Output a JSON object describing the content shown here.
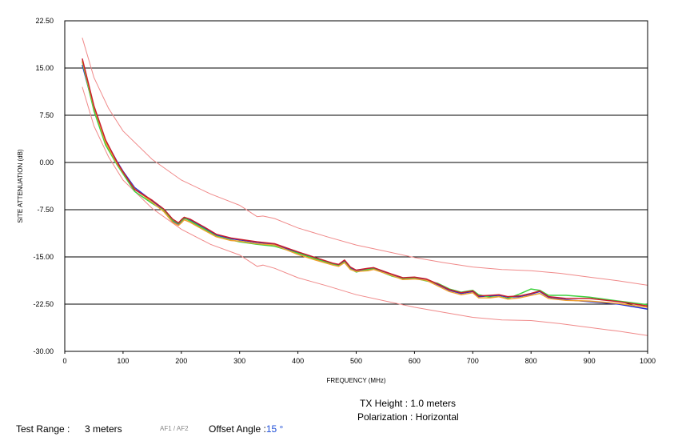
{
  "chart_data": {
    "type": "line",
    "xlabel": "FREQUENCY (MHz)",
    "ylabel": "SITE ATTENUATION (dB)",
    "xlim": [
      0,
      1000
    ],
    "ylim": [
      -30,
      22.5
    ],
    "x_ticks": [
      "0",
      "100",
      "200",
      "300",
      "400",
      "500",
      "600",
      "700",
      "800",
      "900",
      "1000"
    ],
    "y_ticks": [
      "22.50",
      "15.00",
      "7.50",
      "0.00",
      "-7.50",
      "-15.00",
      "-22.50",
      "-30.00"
    ],
    "grid": "horizontal",
    "legend": "none",
    "limit_lines": [
      {
        "color": "#f08a8a",
        "points": [
          [
            30,
            19.8
          ],
          [
            50,
            13.5
          ],
          [
            75,
            8.6
          ],
          [
            100,
            5.0
          ],
          [
            150,
            0.5
          ],
          [
            200,
            -2.8
          ],
          [
            250,
            -5.0
          ],
          [
            300,
            -6.8
          ],
          [
            330,
            -8.6
          ],
          [
            340,
            -8.5
          ],
          [
            360,
            -8.9
          ],
          [
            400,
            -10.4
          ],
          [
            450,
            -11.8
          ],
          [
            500,
            -13.1
          ],
          [
            550,
            -14.1
          ],
          [
            600,
            -15.1
          ],
          [
            650,
            -15.9
          ],
          [
            700,
            -16.6
          ],
          [
            750,
            -17.0
          ],
          [
            800,
            -17.2
          ],
          [
            850,
            -17.6
          ],
          [
            900,
            -18.2
          ],
          [
            950,
            -18.8
          ],
          [
            1000,
            -19.5
          ]
        ]
      },
      {
        "color": "#f08a8a",
        "points": [
          [
            30,
            12.0
          ],
          [
            50,
            5.8
          ],
          [
            75,
            0.9
          ],
          [
            100,
            -2.8
          ],
          [
            150,
            -7.3
          ],
          [
            200,
            -10.6
          ],
          [
            250,
            -13.0
          ],
          [
            300,
            -14.7
          ],
          [
            330,
            -16.5
          ],
          [
            340,
            -16.3
          ],
          [
            360,
            -16.8
          ],
          [
            400,
            -18.3
          ],
          [
            450,
            -19.6
          ],
          [
            500,
            -21.0
          ],
          [
            550,
            -22.0
          ],
          [
            600,
            -23.0
          ],
          [
            650,
            -23.8
          ],
          [
            700,
            -24.6
          ],
          [
            750,
            -25.0
          ],
          [
            800,
            -25.1
          ],
          [
            850,
            -25.6
          ],
          [
            900,
            -26.2
          ],
          [
            950,
            -26.8
          ],
          [
            1000,
            -27.5
          ]
        ]
      }
    ],
    "series": [
      {
        "color": "#1f2dd6",
        "points": [
          [
            30,
            15.5
          ],
          [
            50,
            8.6
          ],
          [
            70,
            3.5
          ],
          [
            90,
            0.1
          ],
          [
            100,
            -1.4
          ],
          [
            120,
            -4.0
          ],
          [
            150,
            -6.1
          ],
          [
            170,
            -7.5
          ],
          [
            185,
            -9.3
          ],
          [
            195,
            -9.8
          ],
          [
            200,
            -9.4
          ],
          [
            205,
            -8.9
          ],
          [
            215,
            -9.1
          ],
          [
            240,
            -10.4
          ],
          [
            260,
            -11.5
          ],
          [
            285,
            -12.1
          ],
          [
            300,
            -12.3
          ],
          [
            330,
            -12.7
          ],
          [
            360,
            -13.0
          ],
          [
            400,
            -14.3
          ],
          [
            430,
            -15.2
          ],
          [
            460,
            -16.1
          ],
          [
            470,
            -16.3
          ],
          [
            480,
            -15.6
          ],
          [
            490,
            -16.7
          ],
          [
            500,
            -17.2
          ],
          [
            520,
            -16.9
          ],
          [
            530,
            -16.8
          ],
          [
            560,
            -17.8
          ],
          [
            580,
            -18.4
          ],
          [
            600,
            -18.3
          ],
          [
            620,
            -18.6
          ],
          [
            640,
            -19.4
          ],
          [
            660,
            -20.3
          ],
          [
            680,
            -20.8
          ],
          [
            700,
            -20.5
          ],
          [
            710,
            -21.3
          ],
          [
            730,
            -21.2
          ],
          [
            745,
            -21.1
          ],
          [
            760,
            -21.4
          ],
          [
            780,
            -21.3
          ],
          [
            800,
            -20.9
          ],
          [
            815,
            -20.5
          ],
          [
            830,
            -21.4
          ],
          [
            860,
            -21.8
          ],
          [
            900,
            -22.1
          ],
          [
            950,
            -22.5
          ],
          [
            1000,
            -23.3
          ]
        ]
      },
      {
        "color": "#3fd13f",
        "points": [
          [
            30,
            16.0
          ],
          [
            50,
            8.2
          ],
          [
            70,
            2.8
          ],
          [
            90,
            -0.4
          ],
          [
            100,
            -1.8
          ],
          [
            120,
            -4.6
          ],
          [
            150,
            -6.5
          ],
          [
            170,
            -7.6
          ],
          [
            185,
            -9.2
          ],
          [
            195,
            -9.7
          ],
          [
            200,
            -9.3
          ],
          [
            205,
            -8.8
          ],
          [
            215,
            -9.3
          ],
          [
            240,
            -10.6
          ],
          [
            260,
            -11.7
          ],
          [
            285,
            -12.3
          ],
          [
            300,
            -12.6
          ],
          [
            330,
            -13.0
          ],
          [
            360,
            -13.3
          ],
          [
            400,
            -14.4
          ],
          [
            430,
            -15.3
          ],
          [
            460,
            -16.2
          ],
          [
            470,
            -16.4
          ],
          [
            480,
            -15.8
          ],
          [
            490,
            -16.9
          ],
          [
            500,
            -17.4
          ],
          [
            520,
            -17.0
          ],
          [
            530,
            -16.9
          ],
          [
            560,
            -18.0
          ],
          [
            580,
            -18.5
          ],
          [
            600,
            -18.4
          ],
          [
            620,
            -18.8
          ],
          [
            640,
            -19.2
          ],
          [
            660,
            -20.1
          ],
          [
            680,
            -20.6
          ],
          [
            700,
            -20.3
          ],
          [
            710,
            -21.0
          ],
          [
            730,
            -21.4
          ],
          [
            745,
            -21.3
          ],
          [
            760,
            -21.6
          ],
          [
            780,
            -20.9
          ],
          [
            800,
            -20.1
          ],
          [
            815,
            -20.3
          ],
          [
            830,
            -21.1
          ],
          [
            860,
            -21.1
          ],
          [
            900,
            -21.4
          ],
          [
            950,
            -22.0
          ],
          [
            1000,
            -22.6
          ]
        ]
      },
      {
        "color": "#f0a030",
        "points": [
          [
            30,
            16.2
          ],
          [
            50,
            8.8
          ],
          [
            70,
            3.2
          ],
          [
            90,
            -0.2
          ],
          [
            100,
            -1.6
          ],
          [
            120,
            -4.2
          ],
          [
            150,
            -6.3
          ],
          [
            170,
            -7.8
          ],
          [
            185,
            -9.5
          ],
          [
            195,
            -10.0
          ],
          [
            200,
            -9.6
          ],
          [
            205,
            -9.1
          ],
          [
            215,
            -9.5
          ],
          [
            240,
            -10.8
          ],
          [
            260,
            -11.8
          ],
          [
            285,
            -12.4
          ],
          [
            300,
            -12.5
          ],
          [
            330,
            -12.9
          ],
          [
            360,
            -13.1
          ],
          [
            400,
            -14.6
          ],
          [
            430,
            -15.5
          ],
          [
            460,
            -16.3
          ],
          [
            470,
            -16.5
          ],
          [
            480,
            -15.9
          ],
          [
            490,
            -17.0
          ],
          [
            500,
            -17.3
          ],
          [
            520,
            -17.2
          ],
          [
            530,
            -17.0
          ],
          [
            560,
            -17.9
          ],
          [
            580,
            -18.6
          ],
          [
            600,
            -18.5
          ],
          [
            620,
            -18.7
          ],
          [
            640,
            -19.6
          ],
          [
            660,
            -20.5
          ],
          [
            680,
            -21.0
          ],
          [
            700,
            -20.7
          ],
          [
            710,
            -21.5
          ],
          [
            730,
            -21.5
          ],
          [
            745,
            -21.3
          ],
          [
            760,
            -21.7
          ],
          [
            780,
            -21.5
          ],
          [
            800,
            -21.1
          ],
          [
            815,
            -20.8
          ],
          [
            830,
            -21.6
          ],
          [
            860,
            -21.9
          ],
          [
            900,
            -22.0
          ],
          [
            950,
            -22.4
          ],
          [
            1000,
            -23.0
          ]
        ]
      },
      {
        "color": "#c81e2e",
        "points": [
          [
            30,
            16.5
          ],
          [
            50,
            9.0
          ],
          [
            70,
            3.6
          ],
          [
            90,
            0.0
          ],
          [
            100,
            -1.5
          ],
          [
            120,
            -4.3
          ],
          [
            150,
            -6.0
          ],
          [
            170,
            -7.4
          ],
          [
            185,
            -9.0
          ],
          [
            195,
            -9.6
          ],
          [
            200,
            -9.1
          ],
          [
            205,
            -8.7
          ],
          [
            215,
            -9.0
          ],
          [
            240,
            -10.3
          ],
          [
            260,
            -11.4
          ],
          [
            285,
            -12.0
          ],
          [
            300,
            -12.2
          ],
          [
            330,
            -12.6
          ],
          [
            360,
            -12.9
          ],
          [
            400,
            -14.2
          ],
          [
            430,
            -15.1
          ],
          [
            460,
            -16.0
          ],
          [
            470,
            -16.2
          ],
          [
            480,
            -15.5
          ],
          [
            490,
            -16.6
          ],
          [
            500,
            -17.1
          ],
          [
            520,
            -16.8
          ],
          [
            530,
            -16.7
          ],
          [
            560,
            -17.7
          ],
          [
            580,
            -18.3
          ],
          [
            600,
            -18.2
          ],
          [
            620,
            -18.5
          ],
          [
            640,
            -19.3
          ],
          [
            660,
            -20.2
          ],
          [
            680,
            -20.7
          ],
          [
            700,
            -20.4
          ],
          [
            710,
            -21.2
          ],
          [
            730,
            -21.1
          ],
          [
            745,
            -21.0
          ],
          [
            760,
            -21.3
          ],
          [
            780,
            -21.2
          ],
          [
            800,
            -20.8
          ],
          [
            815,
            -20.4
          ],
          [
            830,
            -21.3
          ],
          [
            860,
            -21.6
          ],
          [
            900,
            -21.6
          ],
          [
            950,
            -22.1
          ],
          [
            1000,
            -22.8
          ]
        ]
      }
    ]
  },
  "info": {
    "tx_height": "TX Height : 1.0 meters",
    "polarization": "Polarization : Horizontal",
    "test_range_label": "Test Range :",
    "test_range_value": "3 meters",
    "af_label": "AF1 / AF2",
    "offset_label": "Offset Angle :",
    "offset_value": "15 °"
  }
}
